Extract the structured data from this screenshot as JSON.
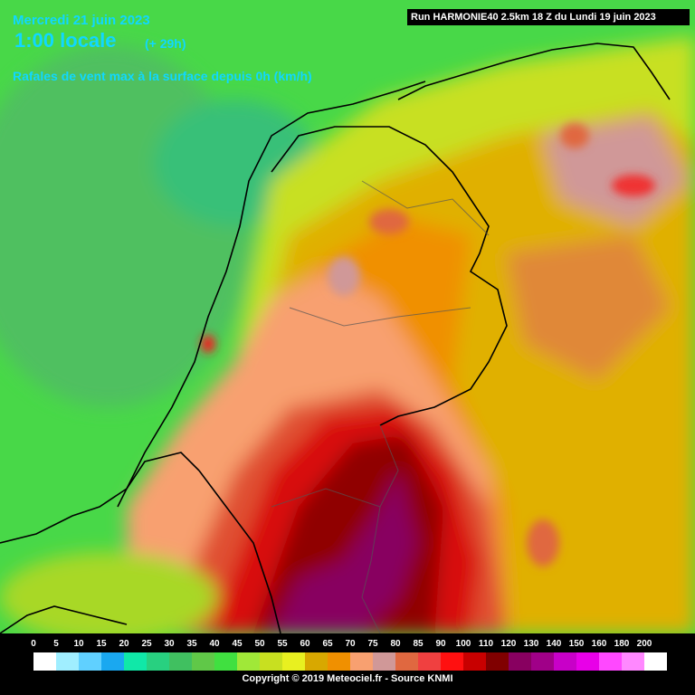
{
  "header": {
    "date": "Mercredi 21 juin 2023",
    "hour": "1:00 locale",
    "lead": "(+ 29h)",
    "parameter": "Rafales de vent max à la surface depuis 0h (km/h)",
    "run": "Run HARMONIE40 2.5km 18 Z du Lundi 19 juin 2023"
  },
  "legend": [
    {
      "value": 0,
      "color": "#ffffff"
    },
    {
      "value": 5,
      "color": "#a0eeff"
    },
    {
      "value": 10,
      "color": "#60d0ff"
    },
    {
      "value": 15,
      "color": "#1aa8f0"
    },
    {
      "value": 20,
      "color": "#10e8a8"
    },
    {
      "value": 25,
      "color": "#28d080"
    },
    {
      "value": 30,
      "color": "#40c060"
    },
    {
      "value": 35,
      "color": "#60c848"
    },
    {
      "value": 40,
      "color": "#40e040"
    },
    {
      "value": 45,
      "color": "#a0e838"
    },
    {
      "value": 50,
      "color": "#c8e020"
    },
    {
      "value": 55,
      "color": "#e8f020"
    },
    {
      "value": 60,
      "color": "#d8a800"
    },
    {
      "value": 65,
      "color": "#f09000"
    },
    {
      "value": 70,
      "color": "#f8a070"
    },
    {
      "value": 75,
      "color": "#d09898"
    },
    {
      "value": 80,
      "color": "#e06840"
    },
    {
      "value": 85,
      "color": "#f04040"
    },
    {
      "value": 90,
      "color": "#ff1010"
    },
    {
      "value": 100,
      "color": "#c80000"
    },
    {
      "value": 110,
      "color": "#800000"
    },
    {
      "value": 120,
      "color": "#880060"
    },
    {
      "value": 130,
      "color": "#a00088"
    },
    {
      "value": 140,
      "color": "#c800c8"
    },
    {
      "value": 150,
      "color": "#e800e8"
    },
    {
      "value": 160,
      "color": "#ff48ff"
    },
    {
      "value": 180,
      "color": "#ff88ff"
    },
    {
      "value": 200,
      "color": "#ffffff"
    }
  ],
  "footer": {
    "copyright": "Copyright © 2019 Meteociel.fr - Source KNMI"
  }
}
